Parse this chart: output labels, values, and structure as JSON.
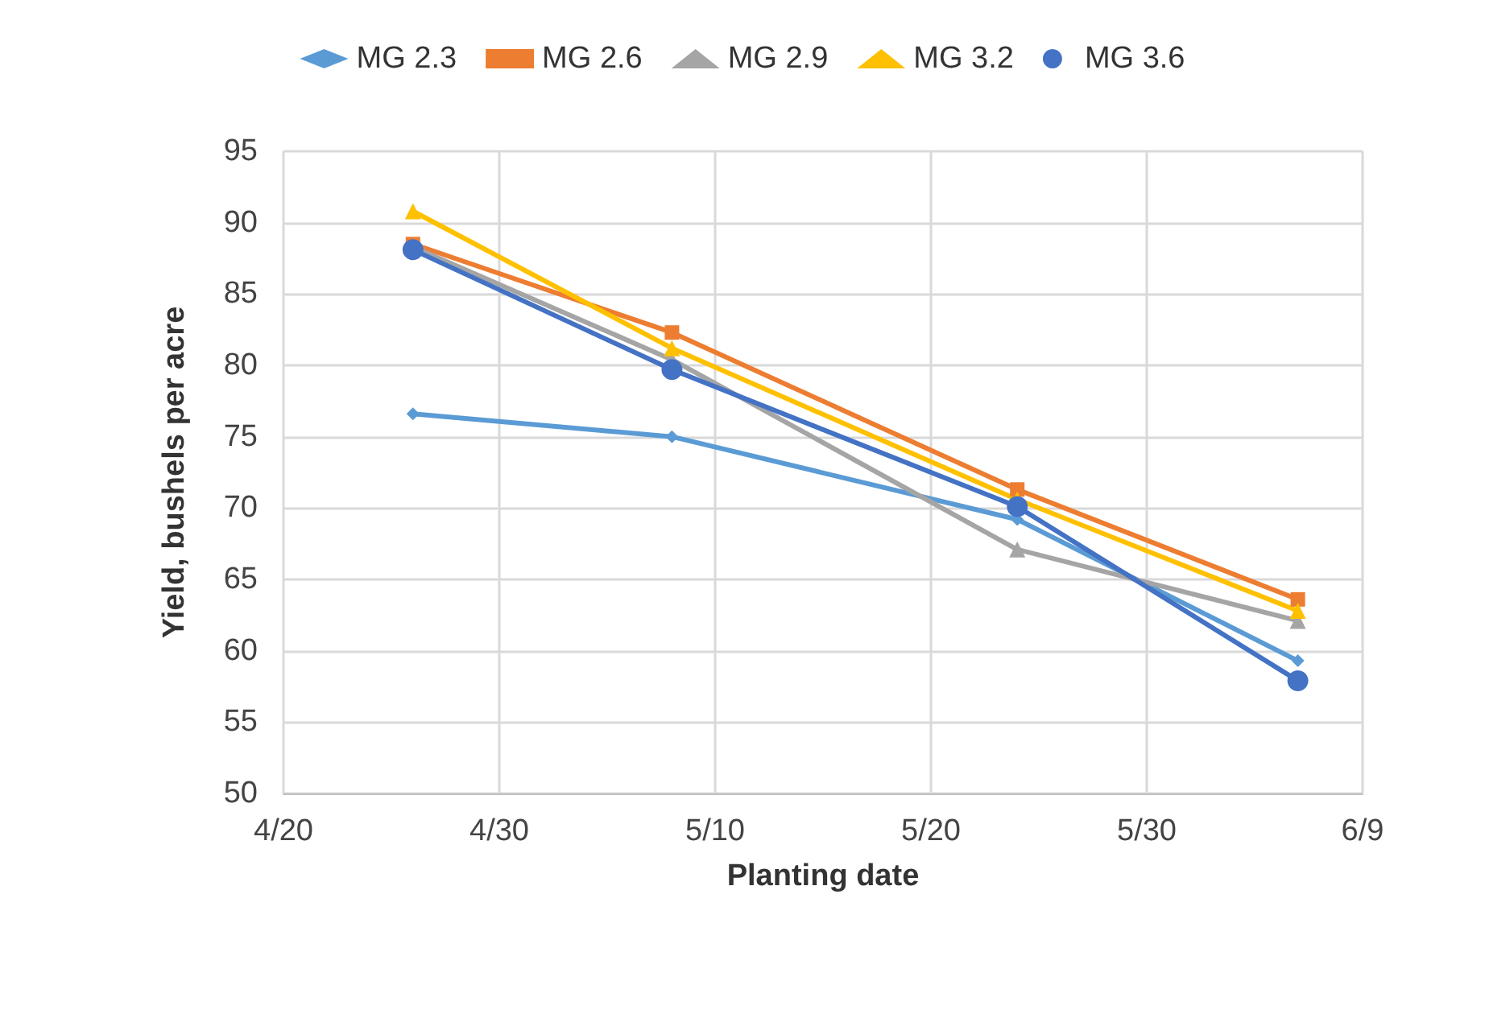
{
  "chart_data": {
    "type": "line",
    "xlabel": "Planting date",
    "ylabel": "Yield, bushels per acre",
    "x": [
      "--04-26",
      "--05-08",
      "--05-24",
      "--06-06"
    ],
    "series": [
      {
        "name": "MG 2.3",
        "color": "#5b9bd5",
        "marker": "diamond",
        "values": [
          76.6,
          75.0,
          69.2,
          59.3
        ]
      },
      {
        "name": "MG 2.6",
        "color": "#ed7d31",
        "marker": "square",
        "values": [
          88.5,
          82.3,
          71.3,
          63.6
        ]
      },
      {
        "name": "MG 2.9",
        "color": "#a5a5a5",
        "marker": "triangle",
        "values": [
          88.3,
          80.4,
          67.1,
          62.1
        ]
      },
      {
        "name": "MG 3.2",
        "color": "#ffc000",
        "marker": "triangle",
        "values": [
          90.8,
          81.2,
          70.6,
          62.8
        ]
      },
      {
        "name": "MG 3.6",
        "color": "#4472c4",
        "marker": "circle",
        "values": [
          88.1,
          79.7,
          70.1,
          57.9
        ]
      }
    ],
    "xlim": [
      "--04-20",
      "--06-09"
    ],
    "xticks": [
      {
        "value": "--04-20",
        "label": "4/20"
      },
      {
        "value": "--04-30",
        "label": "4/30"
      },
      {
        "value": "--05-10",
        "label": "5/10"
      },
      {
        "value": "--05-20",
        "label": "5/20"
      },
      {
        "value": "--05-30",
        "label": "5/30"
      },
      {
        "value": "--06-09",
        "label": "6/9"
      }
    ],
    "ylim": [
      50,
      95
    ],
    "yticks": [
      50,
      55,
      60,
      65,
      70,
      75,
      80,
      85,
      90,
      95
    ],
    "grid": true,
    "legend": "top",
    "line_style": "solid"
  }
}
